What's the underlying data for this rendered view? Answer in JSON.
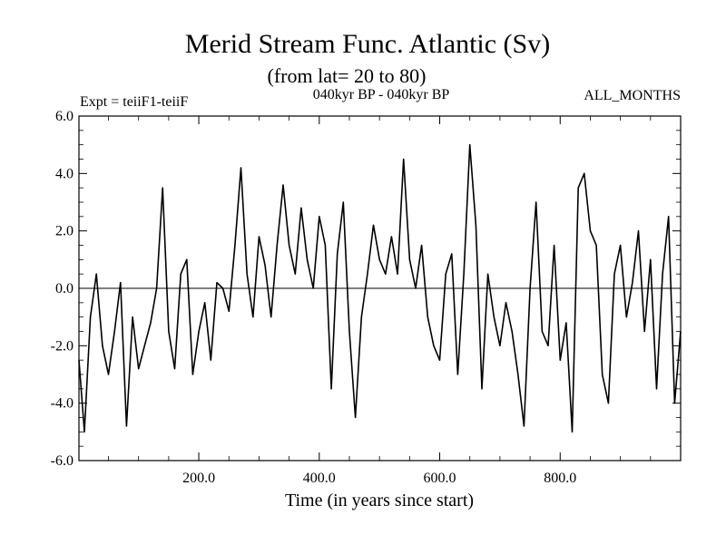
{
  "chart_data": {
    "type": "line",
    "title": "Merid Stream Func. Atlantic (Sv)",
    "subtitle": "(from lat= 20 to 80)",
    "header_left": "Expt = teiiF1-teiiF",
    "header_center": "040kyr BP - 040kyr BP",
    "header_right": "ALL_MONTHS",
    "xlabel": "Time (in years since start)",
    "ylabel": "",
    "xlim": [
      1,
      1000
    ],
    "ylim": [
      -6,
      6
    ],
    "x_ticks": [
      200,
      400,
      600,
      800
    ],
    "x_tick_labels": [
      "200.0",
      "400.0",
      "600.0",
      "800.0"
    ],
    "y_ticks": [
      6,
      4,
      2,
      0,
      -2,
      -4,
      -6
    ],
    "y_tick_labels": [
      "6.0",
      "4.0",
      "2.0",
      "0.0",
      "-2.0",
      "-4.0",
      "-6.0"
    ],
    "zero_line": true,
    "line_color": "#000000",
    "x": [
      1,
      10,
      20,
      30,
      40,
      50,
      60,
      70,
      80,
      90,
      100,
      110,
      120,
      130,
      140,
      150,
      160,
      170,
      180,
      190,
      200,
      210,
      220,
      230,
      240,
      250,
      260,
      270,
      280,
      290,
      300,
      310,
      320,
      330,
      340,
      350,
      360,
      370,
      380,
      390,
      400,
      410,
      420,
      430,
      440,
      450,
      460,
      470,
      480,
      490,
      500,
      510,
      520,
      530,
      540,
      550,
      560,
      570,
      580,
      590,
      600,
      610,
      620,
      630,
      640,
      650,
      660,
      670,
      680,
      690,
      700,
      710,
      720,
      730,
      740,
      750,
      760,
      770,
      780,
      790,
      800,
      810,
      820,
      830,
      840,
      850,
      860,
      870,
      880,
      890,
      900,
      910,
      920,
      930,
      940,
      950,
      960,
      970,
      980,
      990,
      1000
    ],
    "values": [
      -2.5,
      -5.0,
      -1.0,
      0.5,
      -2.0,
      -3.0,
      -1.5,
      0.2,
      -4.8,
      -1.0,
      -2.8,
      -2.0,
      -1.2,
      0.0,
      3.5,
      -1.5,
      -2.8,
      0.5,
      1.0,
      -3.0,
      -1.5,
      -0.5,
      -2.5,
      0.2,
      0.0,
      -0.8,
      1.5,
      4.2,
      0.5,
      -1.0,
      1.8,
      0.8,
      -1.0,
      1.5,
      3.6,
      1.5,
      0.5,
      2.8,
      1.0,
      0.0,
      2.5,
      1.5,
      -3.5,
      1.2,
      3.0,
      -1.5,
      -4.5,
      -1.0,
      0.5,
      2.2,
      1.0,
      0.5,
      1.8,
      0.5,
      4.5,
      1.0,
      0.0,
      1.5,
      -1.0,
      -2.0,
      -2.5,
      0.5,
      1.2,
      -3.0,
      0.5,
      5.0,
      2.2,
      -3.5,
      0.5,
      -1.0,
      -2.0,
      -0.5,
      -1.5,
      -3.0,
      -4.8,
      0.0,
      3.0,
      -1.5,
      -2.0,
      1.5,
      -2.5,
      -1.2,
      -5.0,
      3.5,
      4.0,
      2.0,
      1.5,
      -3.0,
      -4.0,
      0.5,
      1.5,
      -1.0,
      0.2,
      2.0,
      -1.5,
      1.0,
      -3.5,
      0.5,
      2.5,
      -4.0,
      -1.5
    ]
  }
}
